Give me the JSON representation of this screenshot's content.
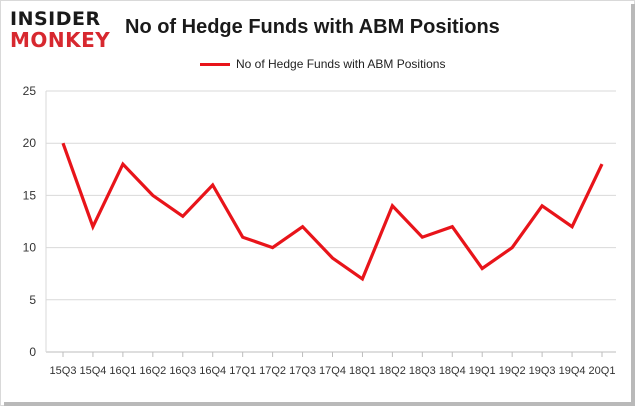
{
  "brand": {
    "line1": "INSIDER",
    "line2": "MONKEY",
    "accent": "#d7282f"
  },
  "chart_data": {
    "type": "line",
    "title": "No of Hedge Funds with ABM Positions",
    "categories": [
      "15Q3",
      "15Q4",
      "16Q1",
      "16Q2",
      "16Q3",
      "16Q4",
      "17Q1",
      "17Q2",
      "17Q3",
      "17Q4",
      "18Q1",
      "18Q2",
      "18Q3",
      "18Q4",
      "19Q1",
      "19Q2",
      "19Q3",
      "19Q4",
      "20Q1"
    ],
    "series": [
      {
        "name": "No of Hedge Funds with ABM Positions",
        "values": [
          20,
          12,
          18,
          15,
          13,
          16,
          11,
          10,
          12,
          9,
          7,
          14,
          11,
          12,
          8,
          10,
          14,
          12,
          18
        ],
        "color": "#e8141a"
      }
    ],
    "ylim": [
      0,
      25
    ],
    "yticks": [
      0,
      5,
      10,
      15,
      20,
      25
    ],
    "grid": true,
    "legend": "top-center",
    "xlabel": "",
    "ylabel": ""
  }
}
